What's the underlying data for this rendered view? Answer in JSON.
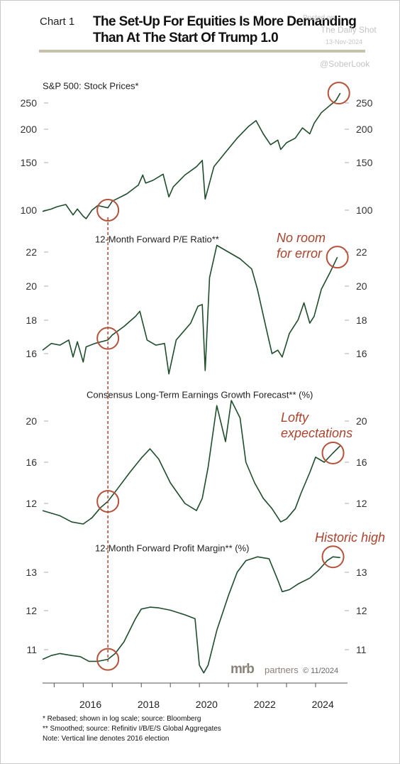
{
  "header": {
    "chart_label": "Chart 1",
    "title": "The Set-Up For Equities Is More Demanding Than At The Start Of Trump 1.0"
  },
  "watermark": {
    "posted": "Posted on",
    "site": "The Daily Shot",
    "date": "13-Nov-2024",
    "handle": "@SoberLook"
  },
  "branding": {
    "logo": "mrb",
    "logo_rest": "partners",
    "copyright": "© 11/2024"
  },
  "footnotes": [
    "*   Rebased; shown in log scale; source: Bloomberg",
    "** Smoothed; source: Refinitiv I/B/E/S Global Aggregates",
    "Note: Vertical line denotes 2016 election"
  ],
  "colors": {
    "line": "#1e4d2b",
    "circle": "#b5523a",
    "annotation": "#a8442e",
    "axis": "#999999"
  },
  "chart_data": {
    "type": "line",
    "x_ticks": [
      2016,
      2018,
      2020,
      2022,
      2024
    ],
    "xlim": [
      2014.6,
      2025.1
    ],
    "event_line_x": 2016.85,
    "panels": [
      {
        "title": "S&P 500:  Stock Prices*",
        "log_scale": true,
        "ylim": [
          92,
          290
        ],
        "y_ticks": [
          100,
          150,
          200,
          250
        ],
        "annotation": "",
        "highlights": [
          [
            2016.85,
            100
          ],
          [
            2024.8,
            272
          ]
        ],
        "series": [
          {
            "x": [
              2014.6,
              2014.9,
              2015.1,
              2015.4,
              2015.65,
              2015.8,
              2016.0,
              2016.1,
              2016.3,
              2016.5,
              2016.85,
              2017.0,
              2017.5,
              2017.9,
              2018.05,
              2018.15,
              2018.4,
              2018.75,
              2018.95,
              2019.1,
              2019.5,
              2019.9,
              2020.1,
              2020.2,
              2020.5,
              2020.9,
              2021.3,
              2021.7,
              2021.95,
              2022.2,
              2022.45,
              2022.7,
              2022.8,
              2023.0,
              2023.3,
              2023.55,
              2023.8,
              2023.95,
              2024.2,
              2024.5,
              2024.7,
              2024.85
            ],
            "values": [
              99,
              101,
              103,
              105,
              96,
              101,
              95,
              93,
              100,
              104,
              102,
              108,
              115,
              124,
              135,
              126,
              129,
              136,
              112,
              122,
              135,
              145,
              153,
              110,
              145,
              164,
              185,
              205,
              215,
              192,
              175,
              182,
              168,
              178,
              185,
              202,
              192,
              210,
              230,
              245,
              255,
              272
            ]
          }
        ]
      },
      {
        "title": "12-Month Forward P/E Ratio**",
        "log_scale": false,
        "ylim": [
          15.2,
          23.3
        ],
        "y_ticks": [
          16,
          18,
          20,
          22
        ],
        "annotation": "No room\nfor error",
        "highlights": [
          [
            2016.85,
            16.9
          ],
          [
            2024.75,
            21.7
          ]
        ],
        "series": [
          {
            "x": [
              2014.6,
              2014.9,
              2015.2,
              2015.5,
              2015.65,
              2015.8,
              2016.0,
              2016.1,
              2016.4,
              2016.85,
              2017.0,
              2017.4,
              2017.8,
              2017.95,
              2018.2,
              2018.5,
              2018.8,
              2018.95,
              2019.2,
              2019.7,
              2019.95,
              2020.1,
              2020.2,
              2020.35,
              2020.6,
              2021.0,
              2021.4,
              2021.8,
              2022.0,
              2022.3,
              2022.5,
              2022.7,
              2022.85,
              2023.1,
              2023.4,
              2023.6,
              2023.8,
              2023.95,
              2024.2,
              2024.5,
              2024.75
            ],
            "values": [
              16.2,
              16.6,
              16.5,
              16.8,
              15.8,
              16.7,
              15.5,
              16.4,
              16.6,
              16.8,
              17.1,
              17.6,
              18.2,
              18.5,
              16.8,
              16.5,
              16.6,
              14.8,
              16.8,
              17.8,
              18.8,
              18.9,
              15.0,
              20.5,
              22.4,
              22.0,
              21.6,
              21.0,
              19.8,
              17.5,
              16.0,
              16.2,
              15.8,
              17.2,
              18.0,
              19.0,
              17.8,
              18.2,
              19.8,
              20.8,
              21.7
            ]
          }
        ]
      },
      {
        "title": "Consensus Long-Term Earnings Growth Forecast** (%)",
        "log_scale": false,
        "ylim": [
          9.5,
          22.8
        ],
        "y_ticks": [
          12,
          16,
          20
        ],
        "annotation": "Lofty\nexpectations",
        "highlights": [
          [
            2016.85,
            12.2
          ],
          [
            2024.6,
            16.9
          ]
        ],
        "series": [
          {
            "x": [
              2014.6,
              2015.2,
              2015.6,
              2016.0,
              2016.3,
              2016.6,
              2016.85,
              2017.2,
              2017.6,
              2018.0,
              2018.3,
              2018.6,
              2019.0,
              2019.5,
              2019.9,
              2020.1,
              2020.3,
              2020.6,
              2020.9,
              2021.1,
              2021.4,
              2021.6,
              2021.9,
              2022.2,
              2022.5,
              2022.8,
              2023.0,
              2023.3,
              2023.5,
              2023.8,
              2024.0,
              2024.3,
              2024.6,
              2024.85
            ],
            "values": [
              11.3,
              10.8,
              10.2,
              10.0,
              10.6,
              11.6,
              12.2,
              13.5,
              15.0,
              16.4,
              17.3,
              16.3,
              14.0,
              12.0,
              11.3,
              12.5,
              15.5,
              21.5,
              18.0,
              22.0,
              20.3,
              16.0,
              14.0,
              12.5,
              11.5,
              10.2,
              10.5,
              11.5,
              13.0,
              15.0,
              16.5,
              16.0,
              16.9,
              17.6
            ]
          }
        ]
      },
      {
        "title": "12-Month Forward Profit Margin** (%)",
        "log_scale": false,
        "ylim": [
          10.15,
          13.95
        ],
        "y_ticks": [
          11,
          12,
          13
        ],
        "annotation": "Historic high",
        "highlights": [
          [
            2016.85,
            10.75
          ],
          [
            2024.6,
            13.4
          ]
        ],
        "series": [
          {
            "x": [
              2014.6,
              2014.9,
              2015.2,
              2015.6,
              2015.9,
              2016.2,
              2016.5,
              2016.85,
              2017.1,
              2017.4,
              2017.8,
              2018.0,
              2018.3,
              2018.6,
              2019.0,
              2019.5,
              2019.85,
              2020.0,
              2020.15,
              2020.3,
              2020.6,
              2021.0,
              2021.3,
              2021.6,
              2022.0,
              2022.4,
              2022.7,
              2022.85,
              2023.1,
              2023.4,
              2023.8,
              2024.1,
              2024.4,
              2024.6,
              2024.85
            ],
            "values": [
              10.75,
              10.85,
              10.9,
              10.85,
              10.82,
              10.7,
              10.7,
              10.75,
              10.9,
              11.2,
              11.8,
              12.05,
              12.1,
              12.08,
              12.02,
              11.9,
              11.8,
              10.6,
              10.4,
              10.6,
              11.5,
              12.4,
              13.0,
              13.3,
              13.4,
              13.35,
              12.8,
              12.5,
              12.55,
              12.7,
              12.85,
              13.05,
              13.3,
              13.4,
              13.38
            ]
          }
        ]
      }
    ]
  }
}
